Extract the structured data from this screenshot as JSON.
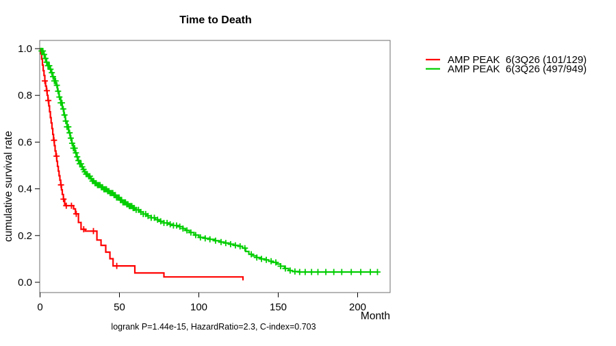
{
  "figure": {
    "title": "Time to Death",
    "x_axis_label": "Month",
    "y_axis_label": "cumulative survival rate",
    "annotation": "logrank P=1.44e-15, HazardRatio=2.3, C-index=0.703"
  },
  "legend": {
    "position": "right-outside",
    "entries": [
      {
        "label": "AMP PEAK  6(3Q26 (101/129)",
        "color": "#FF0000"
      },
      {
        "label": "AMP PEAK  6(3Q26 (497/949)",
        "color": "#00CD00"
      }
    ]
  },
  "chart_data": {
    "type": "line",
    "subtype": "kaplan-meier-step",
    "title": "Time to Death",
    "xlabel": "Month",
    "ylabel": "cumulative survival rate",
    "xlim": [
      0,
      220
    ],
    "ylim": [
      0,
      1
    ],
    "x_ticks": [
      0,
      50,
      100,
      150,
      200
    ],
    "y_ticks": [
      0.0,
      0.2,
      0.4,
      0.6,
      0.8,
      1.0
    ],
    "grid": false,
    "background": "#ffffff",
    "box_color": "#6e6e6e",
    "tick_color": "#000000",
    "series": [
      {
        "name": "AMP PEAK  6(3Q26 (101/129)",
        "color": "#FF0000",
        "events_total": "101/129",
        "steps": [
          [
            0,
            1.0
          ],
          [
            0.5,
            0.978
          ],
          [
            1,
            0.955
          ],
          [
            1.5,
            0.93
          ],
          [
            2,
            0.906
          ],
          [
            2.5,
            0.885
          ],
          [
            3,
            0.862
          ],
          [
            3.5,
            0.84
          ],
          [
            4,
            0.82
          ],
          [
            4.5,
            0.8
          ],
          [
            5,
            0.778
          ],
          [
            5.5,
            0.755
          ],
          [
            6,
            0.73
          ],
          [
            6.5,
            0.705
          ],
          [
            7,
            0.682
          ],
          [
            7.5,
            0.658
          ],
          [
            8,
            0.633
          ],
          [
            8.5,
            0.608
          ],
          [
            9,
            0.585
          ],
          [
            9.5,
            0.562
          ],
          [
            10,
            0.54
          ],
          [
            10.5,
            0.518
          ],
          [
            11,
            0.496
          ],
          [
            11.5,
            0.476
          ],
          [
            12,
            0.456
          ],
          [
            12.5,
            0.437
          ],
          [
            13,
            0.417
          ],
          [
            13.5,
            0.396
          ],
          [
            14,
            0.376
          ],
          [
            14.7,
            0.356
          ],
          [
            15.5,
            0.335
          ],
          [
            16,
            0.328
          ],
          [
            21.1,
            0.314
          ],
          [
            22.3,
            0.293
          ],
          [
            24.2,
            0.256
          ],
          [
            25.8,
            0.227
          ],
          [
            28.5,
            0.219
          ],
          [
            35.8,
            0.181
          ],
          [
            38.4,
            0.158
          ],
          [
            41.4,
            0.129
          ],
          [
            44,
            0.101
          ],
          [
            46,
            0.07
          ],
          [
            59.7,
            0.04
          ],
          [
            78,
            0.023
          ],
          [
            127.8,
            0.008
          ]
        ],
        "censor_months": [
          3,
          4.3,
          5.2,
          8.8,
          10.4,
          13.2,
          14.8,
          16.5,
          19.8,
          22.8,
          27.5,
          33.6,
          48.3
        ]
      },
      {
        "name": "AMP PEAK  6(3Q26 (497/949)",
        "color": "#00CD00",
        "events_total": "497/949",
        "steps": [
          [
            0,
            1.0
          ],
          [
            1,
            0.99
          ],
          [
            2,
            0.975
          ],
          [
            3,
            0.958
          ],
          [
            4,
            0.942
          ],
          [
            5,
            0.927
          ],
          [
            6,
            0.912
          ],
          [
            7,
            0.897
          ],
          [
            8,
            0.88
          ],
          [
            9,
            0.862
          ],
          [
            10,
            0.843
          ],
          [
            11,
            0.818
          ],
          [
            12,
            0.793
          ],
          [
            13,
            0.768
          ],
          [
            14,
            0.742
          ],
          [
            15,
            0.716
          ],
          [
            16,
            0.69
          ],
          [
            17,
            0.665
          ],
          [
            18,
            0.64
          ],
          [
            19,
            0.617
          ],
          [
            20,
            0.595
          ],
          [
            21,
            0.574
          ],
          [
            22,
            0.554
          ],
          [
            23,
            0.537
          ],
          [
            24,
            0.521
          ],
          [
            25,
            0.507
          ],
          [
            26,
            0.494
          ],
          [
            27,
            0.483
          ],
          [
            28,
            0.473
          ],
          [
            29,
            0.463
          ],
          [
            30,
            0.454
          ],
          [
            31.5,
            0.443
          ],
          [
            33,
            0.433
          ],
          [
            34.5,
            0.424
          ],
          [
            36,
            0.416
          ],
          [
            38,
            0.407
          ],
          [
            40,
            0.398
          ],
          [
            42,
            0.39
          ],
          [
            44,
            0.382
          ],
          [
            46,
            0.373
          ],
          [
            48,
            0.363
          ],
          [
            50,
            0.352
          ],
          [
            52,
            0.342
          ],
          [
            54,
            0.334
          ],
          [
            56,
            0.326
          ],
          [
            58,
            0.318
          ],
          [
            60,
            0.31
          ],
          [
            62.5,
            0.301
          ],
          [
            65,
            0.292
          ],
          [
            67.5,
            0.284
          ],
          [
            70,
            0.276
          ],
          [
            72.5,
            0.268
          ],
          [
            75,
            0.261
          ],
          [
            78,
            0.254
          ],
          [
            81,
            0.248
          ],
          [
            84,
            0.243
          ],
          [
            87,
            0.238
          ],
          [
            90,
            0.23
          ],
          [
            91.5,
            0.222
          ],
          [
            94,
            0.213
          ],
          [
            97,
            0.202
          ],
          [
            100,
            0.192
          ],
          [
            104,
            0.188
          ],
          [
            107,
            0.184
          ],
          [
            110,
            0.178
          ],
          [
            113,
            0.172
          ],
          [
            116,
            0.168
          ],
          [
            119,
            0.163
          ],
          [
            122,
            0.158
          ],
          [
            125,
            0.154
          ],
          [
            127.5,
            0.146
          ],
          [
            129.5,
            0.132
          ],
          [
            131.5,
            0.12
          ],
          [
            134,
            0.113
          ],
          [
            136.5,
            0.106
          ],
          [
            139,
            0.1
          ],
          [
            141.5,
            0.096
          ],
          [
            144,
            0.09
          ],
          [
            146.5,
            0.085
          ],
          [
            149,
            0.078
          ],
          [
            151.5,
            0.069
          ],
          [
            154,
            0.059
          ],
          [
            156.5,
            0.05
          ],
          [
            159,
            0.046
          ],
          [
            163,
            0.044
          ],
          [
            212.5,
            0.044
          ]
        ],
        "censor_months": [
          1,
          1.8,
          2.6,
          3.4,
          4.2,
          5,
          5.8,
          6.6,
          7.4,
          8.2,
          9,
          9.8,
          10.6,
          11.4,
          12.2,
          13,
          13.8,
          14.6,
          15.4,
          16.2,
          17,
          17.8,
          18.6,
          19.4,
          20.2,
          21,
          21.8,
          22.6,
          23.4,
          24.2,
          25,
          25.8,
          26.6,
          27.4,
          28.2,
          29,
          29.8,
          30.6,
          31.4,
          32.2,
          33,
          33.8,
          34.6,
          35.4,
          36.2,
          37,
          37.8,
          38.6,
          39.4,
          40.2,
          41,
          41.8,
          42.6,
          43.4,
          44.2,
          45,
          45.8,
          46.6,
          47.4,
          48.2,
          49,
          49.8,
          50.6,
          51.4,
          52.2,
          53,
          53.8,
          54.6,
          55.4,
          56.2,
          57,
          57.8,
          58.6,
          59.4,
          60.5,
          62,
          63.5,
          65,
          66.5,
          68,
          70,
          72,
          74,
          76,
          78,
          80,
          82,
          84,
          86,
          88,
          90,
          92.5,
          95,
          98,
          101,
          104,
          107,
          110.5,
          114,
          117,
          120,
          123,
          126,
          129,
          133,
          136.5,
          139.5,
          142.5,
          145.5,
          148.5,
          151.5,
          154.5,
          157.5,
          160.5,
          163.5,
          167,
          171,
          175,
          180,
          185,
          190,
          196,
          202,
          208,
          212.5
        ]
      }
    ]
  }
}
